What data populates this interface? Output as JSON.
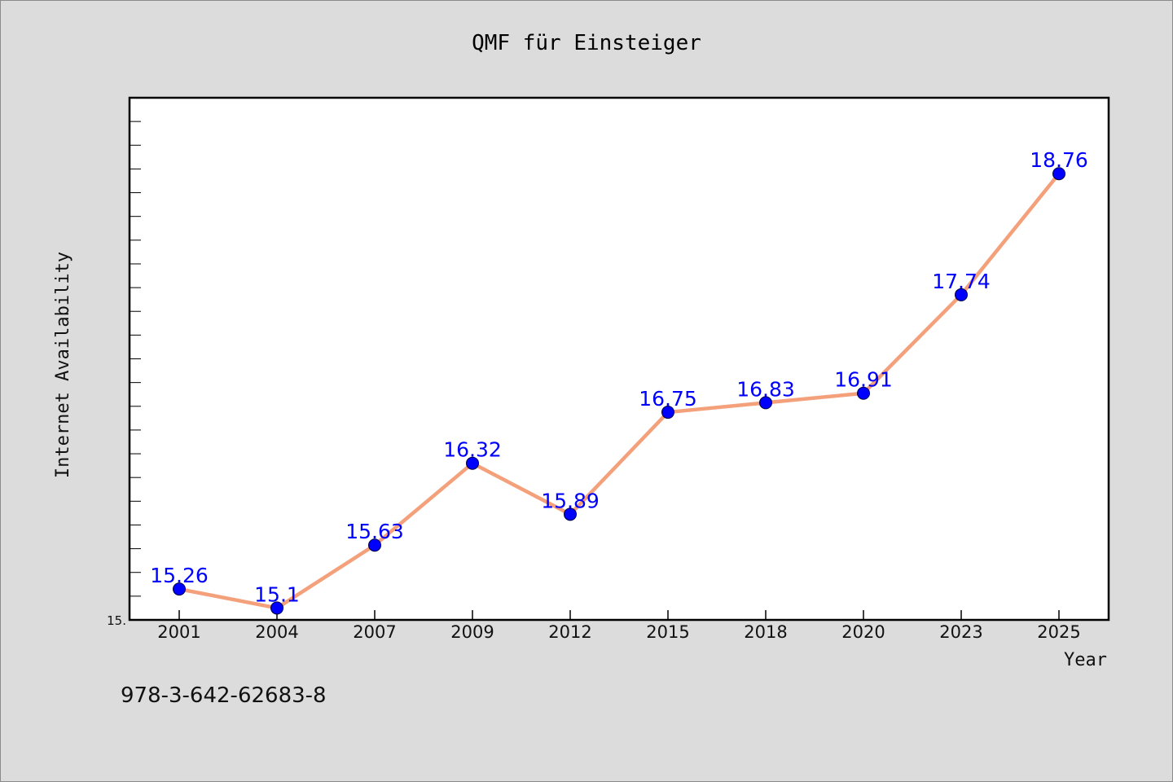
{
  "chart_data": {
    "type": "line",
    "title": "QMF für Einsteiger",
    "xlabel": "Year",
    "ylabel": "Internet Availability",
    "categories": [
      "2001",
      "2004",
      "2007",
      "2009",
      "2012",
      "2015",
      "2018",
      "2020",
      "2023",
      "2025"
    ],
    "series": [
      {
        "values": [
          15.26,
          15.1,
          15.63,
          16.32,
          15.89,
          16.75,
          16.83,
          16.91,
          17.74,
          18.76
        ],
        "labels": [
          "15.26",
          "15.1",
          "15.63",
          "16.32",
          "15.89",
          "16.75",
          "16.83",
          "16.91",
          "17.74",
          "18.76"
        ]
      }
    ],
    "ylim": [
      15.0,
      19.4
    ],
    "y_tick_label": "15.",
    "grid": false,
    "line_color": "#f4a07a",
    "marker_color": "#0000ff"
  },
  "footer": {
    "isbn": "978-3-642-62683-8"
  }
}
